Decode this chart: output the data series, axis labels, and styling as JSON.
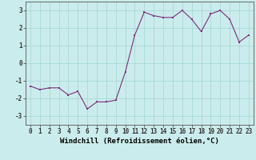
{
  "x": [
    0,
    1,
    2,
    3,
    4,
    5,
    6,
    7,
    8,
    9,
    10,
    11,
    12,
    13,
    14,
    15,
    16,
    17,
    18,
    19,
    20,
    21,
    22,
    23
  ],
  "y": [
    -1.3,
    -1.5,
    -1.4,
    -1.4,
    -1.8,
    -1.6,
    -2.6,
    -2.2,
    -2.2,
    -2.1,
    -0.5,
    1.6,
    2.9,
    2.7,
    2.6,
    2.6,
    3.0,
    2.5,
    1.8,
    2.8,
    3.0,
    2.5,
    1.2,
    1.6
  ],
  "line_color": "#7B2F7B",
  "marker_color": "#7B2F7B",
  "bg_color": "#cbecec",
  "grid_color": "#a8d8d8",
  "xlabel": "Windchill (Refroidissement éolien,°C)",
  "ylim": [
    -3.5,
    3.5
  ],
  "xlim": [
    -0.5,
    23.5
  ],
  "yticks": [
    -3,
    -2,
    -1,
    0,
    1,
    2,
    3
  ],
  "xticks": [
    0,
    1,
    2,
    3,
    4,
    5,
    6,
    7,
    8,
    9,
    10,
    11,
    12,
    13,
    14,
    15,
    16,
    17,
    18,
    19,
    20,
    21,
    22,
    23
  ],
  "tick_fontsize": 5.5,
  "xlabel_fontsize": 6.5,
  "marker_size": 2.0,
  "line_width": 0.8
}
